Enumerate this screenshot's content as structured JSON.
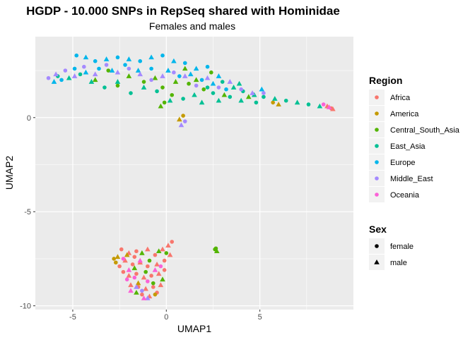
{
  "chart_data": {
    "type": "scatter",
    "title": "HGDP - 10.000 SNPs in RepSeq shared with Hominidae",
    "subtitle": "Females and males",
    "xlabel": "UMAP1",
    "ylabel": "UMAP2",
    "xlim": [
      -7,
      10
    ],
    "ylim": [
      -10.2,
      4.3
    ],
    "xticks": [
      -5,
      0,
      5
    ],
    "yticks": [
      -10,
      -5,
      0
    ],
    "xtick_labels": [
      "-5",
      "0",
      "5"
    ],
    "ytick_labels": [
      "-10",
      "-5",
      "0"
    ],
    "grid": true,
    "legend_position": "right",
    "legends": {
      "region": {
        "title": "Region",
        "items": [
          {
            "label": "Africa",
            "color": "#F8766D"
          },
          {
            "label": "America",
            "color": "#C49A00"
          },
          {
            "label": "Central_South_Asia",
            "color": "#53B400"
          },
          {
            "label": "East_Asia",
            "color": "#00C094"
          },
          {
            "label": "Europe",
            "color": "#00B6EB"
          },
          {
            "label": "Middle_East",
            "color": "#A58AFF"
          },
          {
            "label": "Oceania",
            "color": "#FB61D7"
          }
        ]
      },
      "sex": {
        "title": "Sex",
        "items": [
          {
            "label": "female",
            "shape": "circle"
          },
          {
            "label": "male",
            "shape": "triangle"
          }
        ]
      }
    },
    "series": [
      {
        "name": "Africa",
        "points": [
          [
            -2.4,
            -7.0
          ],
          [
            -2.0,
            -7.2
          ],
          [
            -1.6,
            -7.1
          ],
          [
            -1.0,
            -7.0
          ],
          [
            -0.6,
            -7.3
          ],
          [
            0.1,
            -6.8
          ],
          [
            0.3,
            -6.6
          ],
          [
            -2.2,
            -7.6
          ],
          [
            -1.8,
            -7.8
          ],
          [
            -1.4,
            -7.7
          ],
          [
            -1.0,
            -7.9
          ],
          [
            -0.5,
            -7.8
          ],
          [
            -0.1,
            -7.6
          ],
          [
            0.2,
            -7.3
          ],
          [
            -2.3,
            -8.2
          ],
          [
            -2.0,
            -8.4
          ],
          [
            -1.6,
            -8.3
          ],
          [
            -1.2,
            -8.5
          ],
          [
            -0.8,
            -8.4
          ],
          [
            -0.4,
            -8.3
          ],
          [
            -0.1,
            -8.1
          ],
          [
            -1.9,
            -8.9
          ],
          [
            -1.5,
            -9.0
          ],
          [
            -1.1,
            -9.1
          ],
          [
            -0.7,
            -9.0
          ],
          [
            -0.3,
            -8.9
          ],
          [
            -1.3,
            -9.4
          ],
          [
            -0.9,
            -9.5
          ],
          [
            -0.5,
            -9.3
          ],
          [
            8.6,
            0.6
          ],
          [
            8.8,
            0.5
          ],
          [
            8.9,
            0.45
          ],
          [
            -1.7,
            -7.4
          ],
          [
            -0.2,
            -7.0
          ],
          [
            -2.5,
            -7.9
          ]
        ]
      },
      {
        "name": "America",
        "points": [
          [
            -2.8,
            -7.5
          ],
          [
            -2.6,
            -7.4
          ],
          [
            -2.7,
            -7.7
          ],
          [
            0.7,
            -0.1
          ],
          [
            0.9,
            0.1
          ],
          [
            -1.5,
            -8.8
          ],
          [
            -0.6,
            -9.4
          ],
          [
            6.0,
            0.7
          ],
          [
            5.7,
            0.8
          ],
          [
            -2.1,
            -7.3
          ]
        ]
      },
      {
        "name": "Central_South_Asia",
        "points": [
          [
            2.6,
            -7.0
          ],
          [
            2.7,
            -7.1
          ],
          [
            2.65,
            -6.95
          ],
          [
            -1.3,
            -7.2
          ],
          [
            -0.9,
            -7.6
          ],
          [
            -0.4,
            -7.1
          ],
          [
            0.0,
            -7.2
          ],
          [
            -1.7,
            -8.0
          ],
          [
            -1.1,
            -8.2
          ],
          [
            -0.2,
            -8.6
          ],
          [
            -0.7,
            -8.8
          ],
          [
            -1.6,
            -9.3
          ],
          [
            1.2,
            1.8
          ],
          [
            1.6,
            2.0
          ],
          [
            2.0,
            1.5
          ],
          [
            0.5,
            1.9
          ],
          [
            -0.2,
            1.6
          ],
          [
            -0.6,
            2.1
          ],
          [
            -1.2,
            1.9
          ],
          [
            -2.0,
            2.2
          ],
          [
            -2.6,
            1.7
          ],
          [
            3.1,
            1.2
          ],
          [
            2.4,
            2.4
          ],
          [
            1.0,
            2.6
          ],
          [
            0.3,
            1.2
          ],
          [
            -0.3,
            0.6
          ],
          [
            -0.1,
            0.8
          ],
          [
            4.4,
            1.1
          ],
          [
            -3.1,
            2.5
          ],
          [
            -3.8,
            2.0
          ]
        ]
      },
      {
        "name": "East_Asia",
        "points": [
          [
            3.0,
            1.9
          ],
          [
            3.6,
            1.6
          ],
          [
            4.1,
            1.4
          ],
          [
            4.7,
            1.2
          ],
          [
            5.2,
            1.1
          ],
          [
            5.8,
            1.0
          ],
          [
            6.4,
            0.9
          ],
          [
            7.0,
            0.8
          ],
          [
            7.6,
            0.7
          ],
          [
            8.2,
            0.6
          ],
          [
            2.2,
            1.6
          ],
          [
            1.5,
            1.2
          ],
          [
            0.9,
            1.0
          ],
          [
            0.2,
            0.9
          ],
          [
            -0.5,
            1.4
          ],
          [
            -1.2,
            1.6
          ],
          [
            -1.9,
            1.3
          ],
          [
            -2.6,
            1.9
          ],
          [
            -3.3,
            1.6
          ],
          [
            -4.0,
            1.9
          ],
          [
            -4.6,
            2.3
          ],
          [
            -5.2,
            2.1
          ],
          [
            -5.8,
            2.2
          ],
          [
            2.8,
            0.9
          ],
          [
            3.4,
            1.1
          ],
          [
            4.0,
            0.9
          ],
          [
            4.8,
            0.8
          ],
          [
            3.9,
            1.8
          ],
          [
            2.5,
            1.3
          ],
          [
            1.9,
            0.8
          ]
        ]
      },
      {
        "name": "Europe",
        "points": [
          [
            -4.8,
            3.3
          ],
          [
            -4.3,
            3.2
          ],
          [
            -3.8,
            3.0
          ],
          [
            -3.2,
            3.1
          ],
          [
            -2.6,
            3.2
          ],
          [
            -2.0,
            3.1
          ],
          [
            -1.4,
            3.0
          ],
          [
            -0.8,
            3.2
          ],
          [
            -0.2,
            3.3
          ],
          [
            0.4,
            3.0
          ],
          [
            1.0,
            2.9
          ],
          [
            1.6,
            2.6
          ],
          [
            2.2,
            2.7
          ],
          [
            2.8,
            2.2
          ],
          [
            -4.9,
            2.6
          ],
          [
            -4.3,
            2.4
          ],
          [
            -3.6,
            2.6
          ],
          [
            -2.9,
            2.5
          ],
          [
            -2.2,
            2.8
          ],
          [
            -1.5,
            2.5
          ],
          [
            -0.8,
            2.6
          ],
          [
            0.1,
            2.5
          ],
          [
            0.7,
            2.2
          ],
          [
            1.3,
            2.3
          ],
          [
            1.9,
            2.0
          ],
          [
            2.5,
            1.8
          ],
          [
            3.2,
            1.5
          ],
          [
            5.1,
            1.5
          ],
          [
            -5.6,
            2.0
          ],
          [
            -6.0,
            1.9
          ]
        ]
      },
      {
        "name": "Middle_East",
        "points": [
          [
            -6.3,
            2.1
          ],
          [
            -5.9,
            2.3
          ],
          [
            -5.4,
            2.5
          ],
          [
            -4.9,
            2.2
          ],
          [
            -4.4,
            2.7
          ],
          [
            -3.8,
            2.3
          ],
          [
            -3.2,
            2.8
          ],
          [
            -2.6,
            2.4
          ],
          [
            -2.0,
            2.6
          ],
          [
            -1.4,
            2.3
          ],
          [
            -0.8,
            2.0
          ],
          [
            -0.2,
            2.2
          ],
          [
            0.4,
            2.4
          ],
          [
            1.0,
            2.2
          ],
          [
            1.6,
            1.7
          ],
          [
            2.2,
            2.1
          ],
          [
            2.8,
            1.6
          ],
          [
            3.4,
            1.9
          ],
          [
            4.0,
            1.5
          ],
          [
            4.6,
            1.3
          ],
          [
            5.2,
            1.3
          ],
          [
            0.8,
            -0.4
          ],
          [
            1.0,
            -0.2
          ],
          [
            -1.0,
            -9.6
          ],
          [
            -1.3,
            -9.2
          ],
          [
            -1.6,
            -9.0
          ]
        ]
      },
      {
        "name": "Oceania",
        "points": [
          [
            -2.3,
            -7.5
          ],
          [
            -2.0,
            -8.1
          ],
          [
            -1.7,
            -8.5
          ],
          [
            -1.4,
            -7.6
          ],
          [
            -1.0,
            -8.7
          ],
          [
            -0.6,
            -8.1
          ],
          [
            -0.3,
            -7.9
          ],
          [
            -1.9,
            -9.2
          ],
          [
            8.4,
            0.7
          ],
          [
            8.7,
            0.55
          ],
          [
            -2.1,
            -8.6
          ],
          [
            -1.2,
            -9.6
          ]
        ]
      }
    ]
  }
}
